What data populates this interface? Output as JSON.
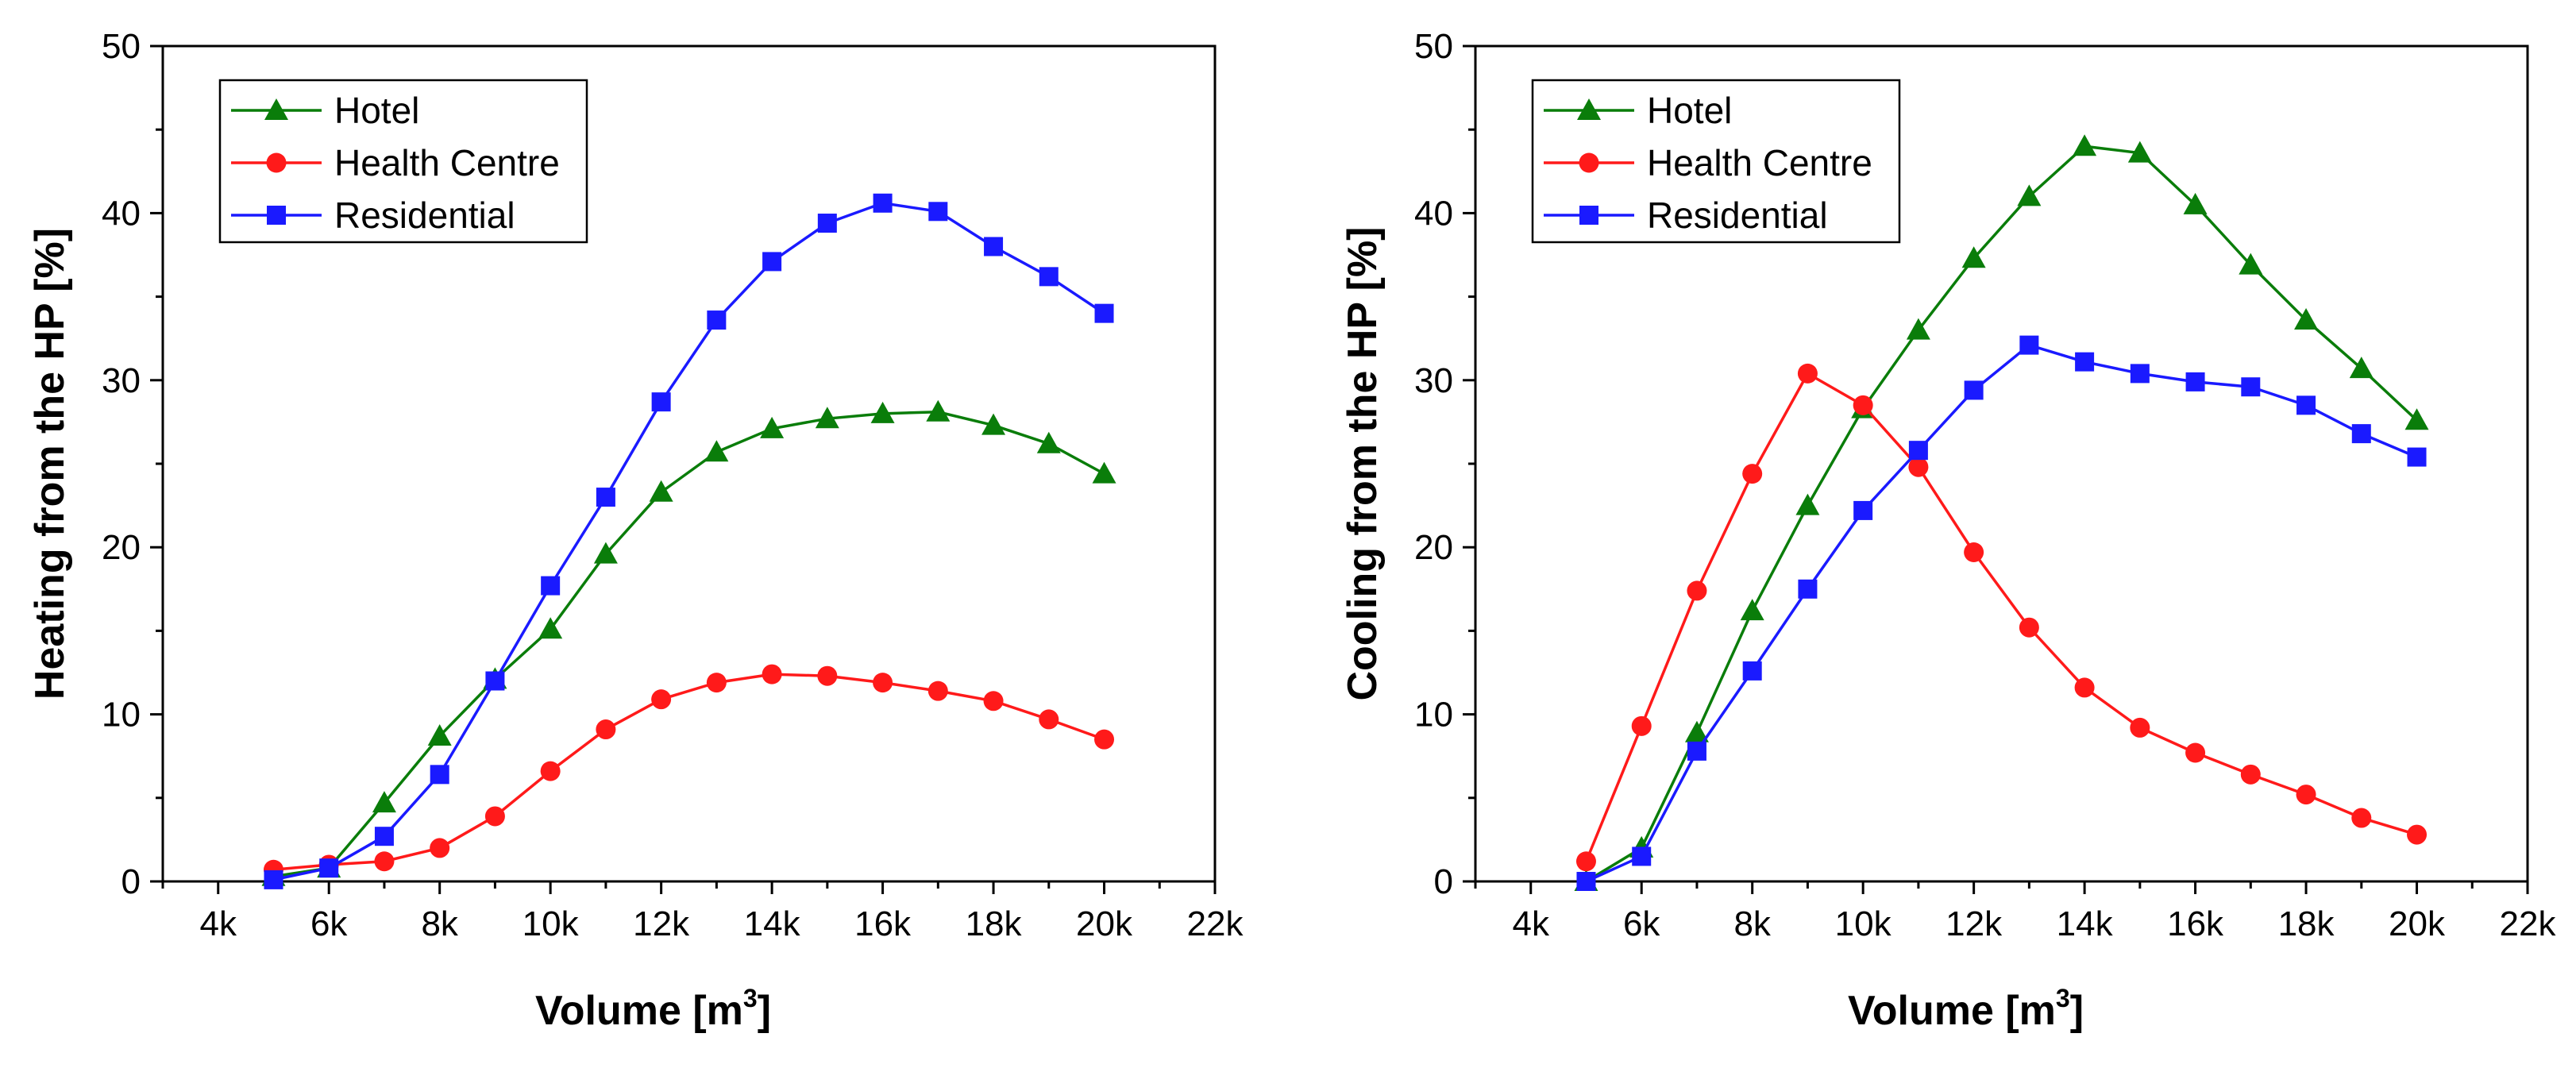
{
  "chart_data": [
    {
      "type": "line",
      "title": "",
      "xlabel": "Volume [m",
      "xlabel_sup": "3",
      "xlabel_end": "]",
      "ylabel": "Heating from the HP [%]",
      "xlim": [
        3000,
        22000
      ],
      "ylim": [
        0,
        50
      ],
      "xticks": [
        4000,
        6000,
        8000,
        10000,
        12000,
        14000,
        16000,
        18000,
        20000,
        22000
      ],
      "xtick_labels": [
        "4k",
        "6k",
        "8k",
        "10k",
        "12k",
        "14k",
        "16k",
        "18k",
        "20k",
        "22k"
      ],
      "yticks": [
        0,
        10,
        20,
        30,
        40,
        50
      ],
      "ytick_labels": [
        "0",
        "10",
        "20",
        "30",
        "40",
        "50"
      ],
      "legend_position": "top-left",
      "x": [
        5000,
        6000,
        7000,
        8000,
        9000,
        10000,
        11000,
        12000,
        13000,
        14000,
        15000,
        16000,
        17000,
        18000,
        19000,
        20000
      ],
      "series": [
        {
          "name": "Hotel",
          "color": "#0a7d0a",
          "marker": "triangle",
          "values": [
            0.3,
            0.8,
            4.7,
            8.7,
            12.1,
            15.1,
            19.6,
            23.3,
            25.7,
            27.1,
            27.7,
            28.0,
            28.1,
            27.3,
            26.2,
            24.4
          ]
        },
        {
          "name": "Health Centre",
          "color": "#ff1a1a",
          "marker": "circle",
          "values": [
            0.7,
            1.0,
            1.2,
            2.0,
            3.9,
            6.6,
            9.1,
            10.9,
            11.9,
            12.4,
            12.3,
            11.9,
            11.4,
            10.8,
            9.7,
            8.5
          ]
        },
        {
          "name": "Residential",
          "color": "#1a1aff",
          "marker": "square",
          "values": [
            0.1,
            0.8,
            2.7,
            6.4,
            12.0,
            17.7,
            23.0,
            28.7,
            33.6,
            37.1,
            39.4,
            40.6,
            40.1,
            38.0,
            36.2,
            34.0
          ]
        }
      ]
    },
    {
      "type": "line",
      "title": "",
      "xlabel": "Volume [m",
      "xlabel_sup": "3",
      "xlabel_end": "]",
      "ylabel": "Cooling from the HP [%]",
      "xlim": [
        3000,
        22000
      ],
      "ylim": [
        0,
        50
      ],
      "xticks": [
        4000,
        6000,
        8000,
        10000,
        12000,
        14000,
        16000,
        18000,
        20000,
        22000
      ],
      "xtick_labels": [
        "4k",
        "6k",
        "8k",
        "10k",
        "12k",
        "14k",
        "16k",
        "18k",
        "20k",
        "22k"
      ],
      "yticks": [
        0,
        10,
        20,
        30,
        40,
        50
      ],
      "ytick_labels": [
        "0",
        "10",
        "20",
        "30",
        "40",
        "50"
      ],
      "legend_position": "top-left",
      "x": [
        5000,
        6000,
        7000,
        8000,
        9000,
        10000,
        11000,
        12000,
        13000,
        14000,
        15000,
        16000,
        17000,
        18000,
        19000,
        20000
      ],
      "series": [
        {
          "name": "Hotel",
          "color": "#0a7d0a",
          "marker": "triangle",
          "values": [
            0.0,
            2.0,
            8.9,
            16.2,
            22.5,
            28.3,
            33.0,
            37.3,
            41.0,
            44.0,
            43.6,
            40.5,
            36.9,
            33.6,
            30.7,
            27.6
          ]
        },
        {
          "name": "Health Centre",
          "color": "#ff1a1a",
          "marker": "circle",
          "values": [
            1.2,
            9.3,
            17.4,
            24.4,
            30.4,
            28.5,
            24.8,
            19.7,
            15.2,
            11.6,
            9.2,
            7.7,
            6.4,
            5.2,
            3.8,
            2.8
          ]
        },
        {
          "name": "Residential",
          "color": "#1a1aff",
          "marker": "square",
          "values": [
            0.0,
            1.5,
            7.8,
            12.6,
            17.5,
            22.2,
            25.8,
            29.4,
            32.1,
            31.1,
            30.4,
            29.9,
            29.6,
            28.5,
            26.8,
            25.4
          ]
        }
      ]
    }
  ]
}
